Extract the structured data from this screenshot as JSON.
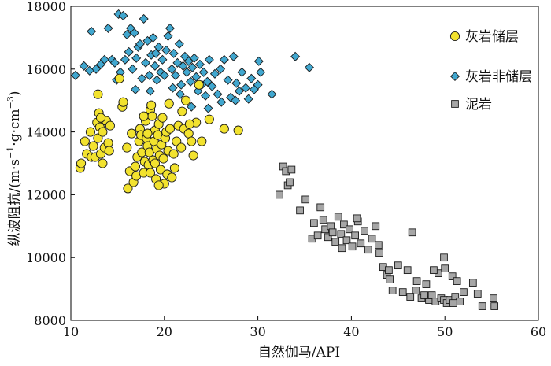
{
  "chart_data": {
    "type": "scatter",
    "title": "",
    "xlabel": "自然伽马/API",
    "ylabel_main": "纵波阻抗/",
    "ylabel_unit_parts": [
      "(m·s",
      "−1",
      "·g·cm",
      "−3",
      ")"
    ],
    "xlim": [
      10,
      60
    ],
    "ylim": [
      8000,
      18000
    ],
    "x_ticks": [
      10,
      20,
      30,
      40,
      50,
      60
    ],
    "y_ticks": [
      8000,
      10000,
      12000,
      14000,
      16000,
      18000
    ],
    "grid": false,
    "legend_position": "top-right",
    "series": [
      {
        "name": "灰岩储层",
        "marker": "circle",
        "color": "#f2e22e",
        "points": [
          [
            11,
            12850
          ],
          [
            11.1,
            13000
          ],
          [
            11.5,
            13700
          ],
          [
            11.7,
            13300
          ],
          [
            12.2,
            13200
          ],
          [
            12.4,
            13550
          ],
          [
            12.6,
            13200
          ],
          [
            12.8,
            14300
          ],
          [
            12.9,
            13800
          ],
          [
            13.0,
            14600
          ],
          [
            13.1,
            14150
          ],
          [
            13.2,
            13300
          ],
          [
            13.4,
            13000
          ],
          [
            13.6,
            13500
          ],
          [
            13.8,
            14350
          ],
          [
            14.0,
            13650
          ],
          [
            14.1,
            13400
          ],
          [
            14.2,
            14200
          ],
          [
            12.9,
            15200
          ],
          [
            13.4,
            14000
          ],
          [
            12.1,
            14000
          ],
          [
            15.5,
            14800
          ],
          [
            15.6,
            14950
          ],
          [
            16.0,
            13500
          ],
          [
            16.1,
            12200
          ],
          [
            16.3,
            12750
          ],
          [
            16.7,
            12400
          ],
          [
            16.9,
            12900
          ],
          [
            17.0,
            12600
          ],
          [
            17.1,
            13200
          ],
          [
            17.3,
            13700
          ],
          [
            17.4,
            14100
          ],
          [
            17.5,
            13900
          ],
          [
            17.6,
            13350
          ],
          [
            17.8,
            12700
          ],
          [
            17.9,
            13050
          ],
          [
            18.0,
            14350
          ],
          [
            18.1,
            13800
          ],
          [
            18.2,
            13550
          ],
          [
            18.3,
            12950
          ],
          [
            18.4,
            13350
          ],
          [
            18.5,
            14700
          ],
          [
            18.6,
            14850
          ],
          [
            18.7,
            14500
          ],
          [
            18.8,
            13100
          ],
          [
            18.9,
            13700
          ],
          [
            19.0,
            14050
          ],
          [
            19.1,
            12500
          ],
          [
            19.2,
            13450
          ],
          [
            19.3,
            13900
          ],
          [
            19.4,
            14250
          ],
          [
            19.5,
            13250
          ],
          [
            19.6,
            12800
          ],
          [
            19.7,
            13600
          ],
          [
            19.8,
            14450
          ],
          [
            19.9,
            13150
          ],
          [
            20.0,
            12350
          ],
          [
            20.1,
            13800
          ],
          [
            20.2,
            14000
          ],
          [
            20.3,
            12650
          ],
          [
            20.4,
            13400
          ],
          [
            20.6,
            14100
          ],
          [
            20.8,
            12550
          ],
          [
            21.0,
            13300
          ],
          [
            21.1,
            12850
          ],
          [
            21.3,
            13700
          ],
          [
            21.5,
            14200
          ],
          [
            21.8,
            13500
          ],
          [
            22.1,
            14100
          ],
          [
            22.3,
            15000
          ],
          [
            22.6,
            13950
          ],
          [
            22.9,
            13700
          ],
          [
            23.1,
            13250
          ],
          [
            23.4,
            14300
          ],
          [
            23.7,
            15500
          ],
          [
            24.0,
            13700
          ],
          [
            24.8,
            14400
          ],
          [
            26.4,
            14100
          ],
          [
            27.9,
            14050
          ],
          [
            19.4,
            12300
          ],
          [
            18.5,
            12700
          ],
          [
            18.2,
            13950
          ],
          [
            19.0,
            13000
          ],
          [
            17.8,
            14500
          ],
          [
            20.5,
            14900
          ],
          [
            21.9,
            14650
          ],
          [
            22.7,
            14250
          ],
          [
            16.5,
            13950
          ],
          [
            15.2,
            15700
          ],
          [
            13.2,
            14450
          ]
        ]
      },
      {
        "name": "灰岩非储层",
        "marker": "diamond",
        "color": "#41a7cf",
        "points": [
          [
            10.5,
            15800
          ],
          [
            11.4,
            16100
          ],
          [
            12.2,
            17200
          ],
          [
            12.7,
            16000
          ],
          [
            13.2,
            16150
          ],
          [
            14.0,
            17300
          ],
          [
            14.4,
            16300
          ],
          [
            14.7,
            16200
          ],
          [
            15.1,
            17750
          ],
          [
            15.3,
            15900
          ],
          [
            15.6,
            17700
          ],
          [
            15.8,
            16300
          ],
          [
            16.0,
            17100
          ],
          [
            16.2,
            16550
          ],
          [
            16.4,
            17300
          ],
          [
            16.6,
            16000
          ],
          [
            16.8,
            17150
          ],
          [
            17.0,
            16350
          ],
          [
            17.2,
            16700
          ],
          [
            17.4,
            16800
          ],
          [
            17.6,
            15700
          ],
          [
            17.8,
            17600
          ],
          [
            18.0,
            16200
          ],
          [
            18.2,
            16900
          ],
          [
            18.4,
            15800
          ],
          [
            18.6,
            16450
          ],
          [
            18.8,
            17000
          ],
          [
            19.0,
            16100
          ],
          [
            19.2,
            15650
          ],
          [
            19.4,
            16700
          ],
          [
            19.6,
            15900
          ],
          [
            19.8,
            16300
          ],
          [
            20.0,
            15800
          ],
          [
            20.2,
            16600
          ],
          [
            20.4,
            17050
          ],
          [
            20.6,
            17300
          ],
          [
            20.8,
            16000
          ],
          [
            21.0,
            16500
          ],
          [
            21.2,
            15800
          ],
          [
            21.4,
            16200
          ],
          [
            21.6,
            16800
          ],
          [
            21.8,
            15500
          ],
          [
            22.0,
            16100
          ],
          [
            22.2,
            16400
          ],
          [
            22.4,
            15900
          ],
          [
            22.6,
            16250
          ],
          [
            22.8,
            15600
          ],
          [
            23.0,
            16050
          ],
          [
            23.2,
            16350
          ],
          [
            23.4,
            15750
          ],
          [
            23.6,
            15300
          ],
          [
            23.8,
            16150
          ],
          [
            24.0,
            15500
          ],
          [
            24.2,
            15900
          ],
          [
            24.4,
            15150
          ],
          [
            24.6,
            15600
          ],
          [
            24.8,
            16300
          ],
          [
            25.1,
            15450
          ],
          [
            25.4,
            15850
          ],
          [
            25.7,
            15200
          ],
          [
            26.0,
            16000
          ],
          [
            26.4,
            16300
          ],
          [
            26.8,
            15650
          ],
          [
            27.1,
            15100
          ],
          [
            27.4,
            16400
          ],
          [
            27.7,
            15550
          ],
          [
            28.0,
            15300
          ],
          [
            28.3,
            15900
          ],
          [
            28.7,
            15400
          ],
          [
            29.0,
            15050
          ],
          [
            29.3,
            15700
          ],
          [
            29.6,
            15350
          ],
          [
            30.0,
            15500
          ],
          [
            30.3,
            15900
          ],
          [
            31.5,
            15200
          ],
          [
            34.0,
            16400
          ],
          [
            35.5,
            16050
          ],
          [
            30.1,
            16250
          ],
          [
            12.0,
            15950
          ],
          [
            13.6,
            16300
          ],
          [
            14.9,
            15650
          ],
          [
            16.9,
            15350
          ],
          [
            18.5,
            15300
          ],
          [
            20.9,
            15400
          ],
          [
            22.9,
            14800
          ],
          [
            24.7,
            14750
          ],
          [
            26.1,
            14950
          ],
          [
            27.6,
            15000
          ],
          [
            21.7,
            15200
          ],
          [
            19.1,
            16500
          ]
        ]
      },
      {
        "name": "泥岩",
        "marker": "square",
        "color": "#a6a6a6",
        "points": [
          [
            32.3,
            12000
          ],
          [
            32.7,
            12900
          ],
          [
            33.0,
            12750
          ],
          [
            33.2,
            12300
          ],
          [
            33.4,
            12400
          ],
          [
            33.6,
            12800
          ],
          [
            35.1,
            11850
          ],
          [
            36.0,
            11100
          ],
          [
            36.7,
            11600
          ],
          [
            37.2,
            10900
          ],
          [
            37.5,
            10650
          ],
          [
            37.8,
            11000
          ],
          [
            38.0,
            10800
          ],
          [
            38.3,
            10500
          ],
          [
            38.6,
            11300
          ],
          [
            38.9,
            10750
          ],
          [
            39.2,
            11050
          ],
          [
            39.5,
            10550
          ],
          [
            39.8,
            10900
          ],
          [
            40.1,
            10350
          ],
          [
            40.4,
            10700
          ],
          [
            40.7,
            11150
          ],
          [
            41.0,
            10450
          ],
          [
            41.4,
            10850
          ],
          [
            41.8,
            10250
          ],
          [
            42.2,
            10600
          ],
          [
            42.6,
            11000
          ],
          [
            43.0,
            10150
          ],
          [
            43.4,
            9700
          ],
          [
            43.8,
            9450
          ],
          [
            44.1,
            9300
          ],
          [
            44.4,
            8950
          ],
          [
            45.0,
            9750
          ],
          [
            45.5,
            8900
          ],
          [
            46.0,
            9600
          ],
          [
            46.5,
            10800
          ],
          [
            47.0,
            9250
          ],
          [
            47.5,
            8700
          ],
          [
            48.0,
            9150
          ],
          [
            48.3,
            8650
          ],
          [
            48.6,
            8800
          ],
          [
            49.0,
            8600
          ],
          [
            49.3,
            9500
          ],
          [
            49.6,
            8700
          ],
          [
            49.9,
            8650
          ],
          [
            50.2,
            8550
          ],
          [
            50.5,
            8650
          ],
          [
            50.8,
            9400
          ],
          [
            51.1,
            8750
          ],
          [
            51.3,
            9250
          ],
          [
            51.6,
            8600
          ],
          [
            52.0,
            8900
          ],
          [
            53.0,
            9200
          ],
          [
            53.5,
            8850
          ],
          [
            54.0,
            8450
          ],
          [
            55.2,
            8700
          ],
          [
            55.3,
            8450
          ],
          [
            49.9,
            10000
          ],
          [
            50.0,
            9650
          ],
          [
            34.5,
            11500
          ],
          [
            35.8,
            10600
          ],
          [
            36.4,
            10700
          ],
          [
            37.0,
            11200
          ],
          [
            39.0,
            10300
          ],
          [
            40.6,
            11250
          ],
          [
            42.9,
            10400
          ],
          [
            44.0,
            9600
          ],
          [
            46.9,
            8950
          ],
          [
            48.8,
            9600
          ],
          [
            47.8,
            8800
          ],
          [
            46.3,
            8750
          ],
          [
            50.9,
            8550
          ]
        ]
      }
    ]
  }
}
